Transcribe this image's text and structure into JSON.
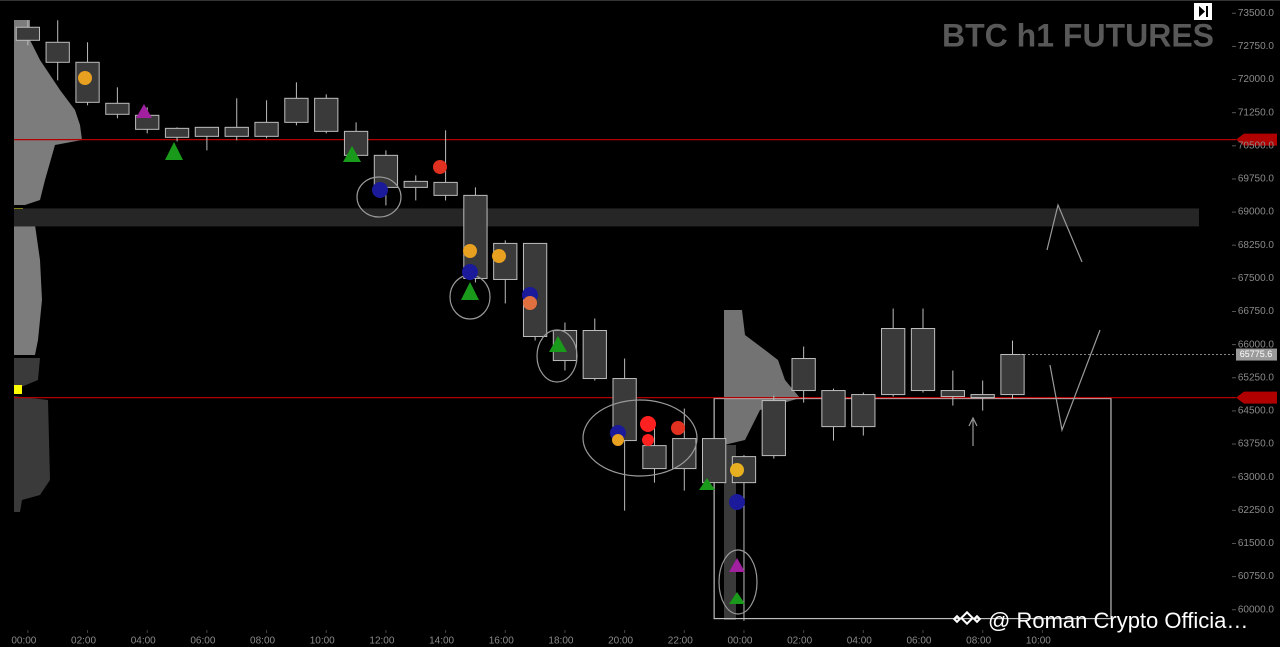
{
  "chart_data": {
    "type": "candlestick",
    "title": "BTC h1 FUTURES",
    "watermark": "@ Roman Crypto Officia…",
    "x": [
      0,
      1,
      2,
      3,
      4,
      5,
      6,
      7,
      8,
      9,
      10,
      11,
      12,
      13,
      14,
      15,
      16,
      17,
      18,
      19,
      20,
      21,
      22,
      23,
      24,
      25,
      26,
      27,
      28,
      29,
      30,
      31,
      32,
      33
    ],
    "open": [
      73183,
      72843,
      72390,
      71462,
      71190,
      70895,
      70918,
      70714,
      70714,
      71031,
      71575,
      70827,
      70284,
      69559,
      69672,
      69378,
      67475,
      68291,
      66320,
      66320,
      65233,
      63195,
      63195,
      63874,
      62877,
      63489,
      64961,
      64961,
      64145,
      64870,
      66365,
      64961,
      64870,
      64870
    ],
    "high": [
      73341,
      73341,
      72843,
      71824,
      71371,
      70918,
      70918,
      71575,
      71530,
      71937,
      71665,
      71031,
      70397,
      69831,
      70850,
      69559,
      68359,
      68291,
      66501,
      66592,
      65686,
      64281,
      64553,
      63874,
      63500,
      64848,
      65958,
      65006,
      64916,
      66818,
      66818,
      65414,
      65188,
      66093
    ],
    "low": [
      72775,
      71982,
      71416,
      71122,
      70782,
      70600,
      70397,
      70624,
      70669,
      70963,
      70782,
      70171,
      69151,
      69264,
      69264,
      67407,
      66932,
      66094,
      65414,
      65188,
      62243,
      62877,
      62696,
      62877,
      59752,
      63421,
      64689,
      63829,
      63942,
      64825,
      64916,
      64621,
      64508,
      64779
    ],
    "close": [
      72888,
      72390,
      71484,
      71213,
      70873,
      70692,
      70714,
      70918,
      71031,
      71575,
      70827,
      70284,
      69559,
      69695,
      69378,
      67498,
      68291,
      66184,
      65640,
      65233,
      63829,
      63715,
      63874,
      62877,
      63466,
      64734,
      65686,
      64145,
      64870,
      66365,
      64961,
      64825,
      64802,
      65777
    ],
    "candle_color": "#3a3a3a",
    "candle_edge": "#bdbdbd",
    "xlim": [
      -0.8,
      42.3
    ],
    "xticks": [
      {
        "value": 0,
        "label": "00:00"
      },
      {
        "value": 2,
        "label": "02:00"
      },
      {
        "value": 4,
        "label": "04:00"
      },
      {
        "value": 6,
        "label": "06:00"
      },
      {
        "value": 8,
        "label": "08:00"
      },
      {
        "value": 10,
        "label": "10:00"
      },
      {
        "value": 12,
        "label": "12:00"
      },
      {
        "value": 14,
        "label": "14:00"
      },
      {
        "value": 16,
        "label": "16:00"
      },
      {
        "value": 18,
        "label": "18:00"
      },
      {
        "value": 20,
        "label": "20:00"
      },
      {
        "value": 22,
        "label": "22:00"
      },
      {
        "value": 24,
        "label": "00:00"
      },
      {
        "value": 26,
        "label": "02:00"
      },
      {
        "value": 28,
        "label": "04:00"
      },
      {
        "value": 30,
        "label": "06:00"
      },
      {
        "value": 32,
        "label": "08:00"
      },
      {
        "value": 34,
        "label": "10:00"
      }
    ],
    "ylim": [
      59700,
      73800
    ],
    "yticks": [
      {
        "value": 60000,
        "label": "60000.0"
      },
      {
        "value": 60750,
        "label": "60750.0"
      },
      {
        "value": 61500,
        "label": "61500.0"
      },
      {
        "value": 62250,
        "label": "62250.0"
      },
      {
        "value": 63000,
        "label": "63000.0"
      },
      {
        "value": 63750,
        "label": "63750.0"
      },
      {
        "value": 64500,
        "label": "64500.0"
      },
      {
        "value": 65250,
        "label": "65250.0"
      },
      {
        "value": 66000,
        "label": "66000.0"
      },
      {
        "value": 66750,
        "label": "66750.0"
      },
      {
        "value": 67500,
        "label": "67500.0"
      },
      {
        "value": 68250,
        "label": "68250.0"
      },
      {
        "value": 69000,
        "label": "69000.0"
      },
      {
        "value": 69750,
        "label": "69750.0"
      },
      {
        "value": 70500,
        "label": "70500.0"
      },
      {
        "value": 71250,
        "label": "71250.0"
      },
      {
        "value": 72000,
        "label": "72000.0"
      },
      {
        "value": 72750,
        "label": "72750.0"
      },
      {
        "value": 73500,
        "label": "73500.0"
      }
    ],
    "last_price": 65775.6,
    "levels": [
      {
        "value": 70640,
        "color": "#b00000"
      },
      {
        "value": 64800,
        "color": "#b00000"
      }
    ],
    "zone": [
      68675,
      69083
    ],
    "box": {
      "x": [
        23,
        36.3
      ],
      "y": [
        59800,
        64780
      ]
    }
  }
}
